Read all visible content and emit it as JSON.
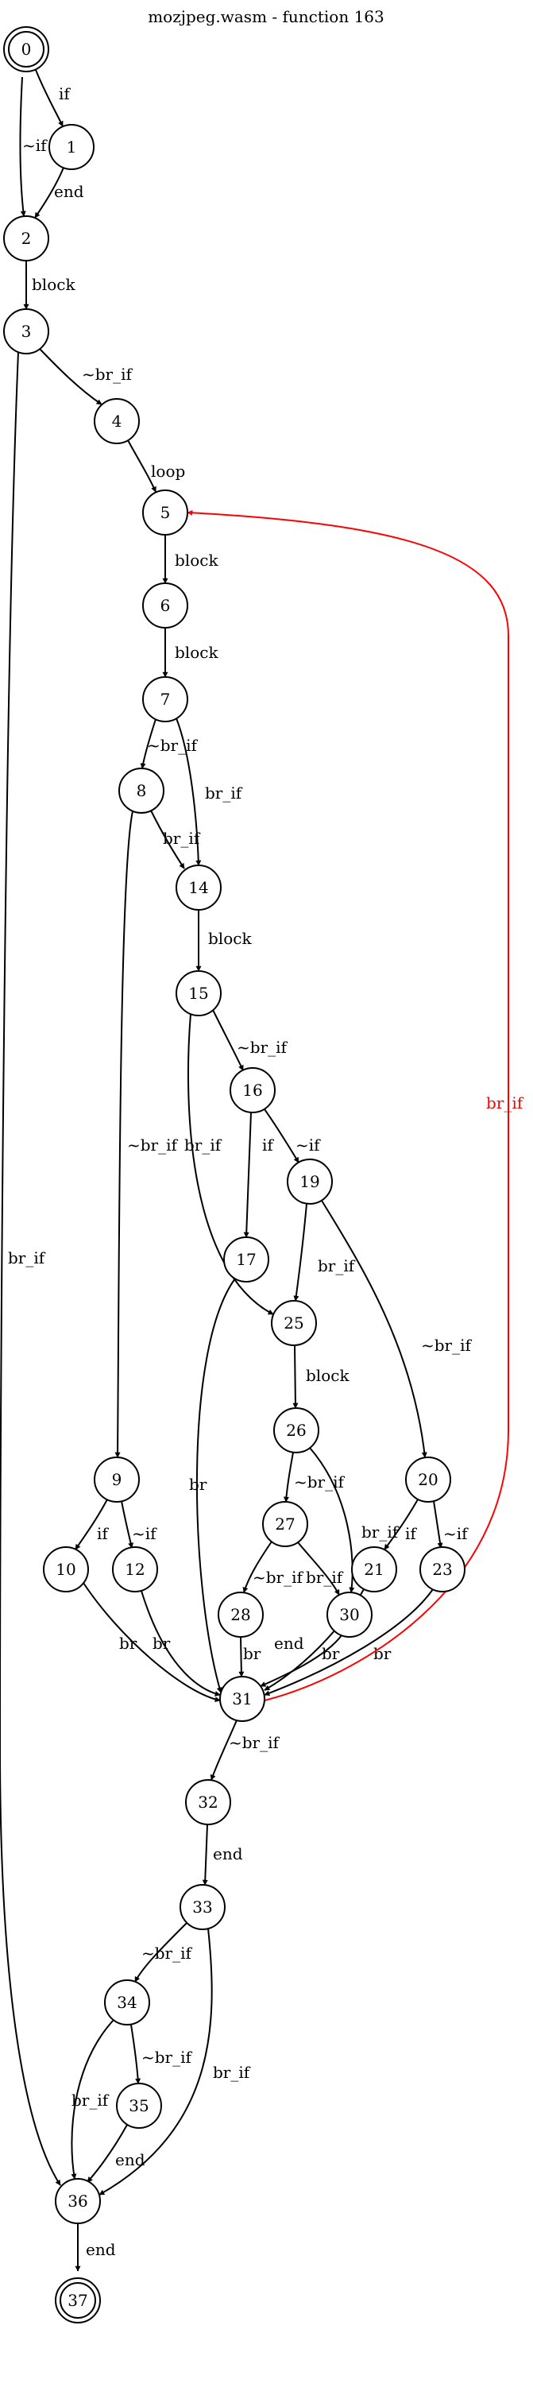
{
  "title": "mozjpeg.wasm - function 163",
  "colors": {
    "default": "#000000",
    "back_edge": "#ff0000"
  },
  "nodes": [
    {
      "id": "0",
      "label": "0",
      "shape": "doublecircle"
    },
    {
      "id": "1",
      "label": "1",
      "shape": "circle"
    },
    {
      "id": "2",
      "label": "2",
      "shape": "circle"
    },
    {
      "id": "3",
      "label": "3",
      "shape": "circle"
    },
    {
      "id": "4",
      "label": "4",
      "shape": "circle"
    },
    {
      "id": "5",
      "label": "5",
      "shape": "circle"
    },
    {
      "id": "6",
      "label": "6",
      "shape": "circle"
    },
    {
      "id": "7",
      "label": "7",
      "shape": "circle"
    },
    {
      "id": "8",
      "label": "8",
      "shape": "circle"
    },
    {
      "id": "9",
      "label": "9",
      "shape": "circle"
    },
    {
      "id": "10",
      "label": "10",
      "shape": "circle"
    },
    {
      "id": "12",
      "label": "12",
      "shape": "circle"
    },
    {
      "id": "14",
      "label": "14",
      "shape": "circle"
    },
    {
      "id": "15",
      "label": "15",
      "shape": "circle"
    },
    {
      "id": "16",
      "label": "16",
      "shape": "circle"
    },
    {
      "id": "17",
      "label": "17",
      "shape": "circle"
    },
    {
      "id": "19",
      "label": "19",
      "shape": "circle"
    },
    {
      "id": "20",
      "label": "20",
      "shape": "circle"
    },
    {
      "id": "21",
      "label": "21",
      "shape": "circle"
    },
    {
      "id": "23",
      "label": "23",
      "shape": "circle"
    },
    {
      "id": "25",
      "label": "25",
      "shape": "circle"
    },
    {
      "id": "26",
      "label": "26",
      "shape": "circle"
    },
    {
      "id": "27",
      "label": "27",
      "shape": "circle"
    },
    {
      "id": "28",
      "label": "28",
      "shape": "circle"
    },
    {
      "id": "30",
      "label": "30",
      "shape": "circle"
    },
    {
      "id": "31",
      "label": "31",
      "shape": "circle"
    },
    {
      "id": "32",
      "label": "32",
      "shape": "circle"
    },
    {
      "id": "33",
      "label": "33",
      "shape": "circle"
    },
    {
      "id": "34",
      "label": "34",
      "shape": "circle"
    },
    {
      "id": "35",
      "label": "35",
      "shape": "circle"
    },
    {
      "id": "36",
      "label": "36",
      "shape": "circle"
    },
    {
      "id": "37",
      "label": "37",
      "shape": "doublecircle"
    }
  ],
  "edges": [
    {
      "from": "0",
      "to": "1",
      "label": "if",
      "color": "#000000"
    },
    {
      "from": "0",
      "to": "2",
      "label": "~if",
      "color": "#000000"
    },
    {
      "from": "1",
      "to": "2",
      "label": "end",
      "color": "#000000"
    },
    {
      "from": "2",
      "to": "3",
      "label": "block",
      "color": "#000000"
    },
    {
      "from": "3",
      "to": "4",
      "label": "~br_if",
      "color": "#000000"
    },
    {
      "from": "3",
      "to": "36",
      "label": "br_if",
      "color": "#000000"
    },
    {
      "from": "4",
      "to": "5",
      "label": "loop",
      "color": "#000000"
    },
    {
      "from": "5",
      "to": "6",
      "label": "block",
      "color": "#000000"
    },
    {
      "from": "6",
      "to": "7",
      "label": "block",
      "color": "#000000"
    },
    {
      "from": "7",
      "to": "8",
      "label": "~br_if",
      "color": "#000000"
    },
    {
      "from": "7",
      "to": "14",
      "label": "br_if",
      "color": "#000000"
    },
    {
      "from": "8",
      "to": "14",
      "label": "br_if",
      "color": "#000000"
    },
    {
      "from": "8",
      "to": "9",
      "label": "~br_if",
      "color": "#000000"
    },
    {
      "from": "14",
      "to": "15",
      "label": "block",
      "color": "#000000"
    },
    {
      "from": "15",
      "to": "16",
      "label": "~br_if",
      "color": "#000000"
    },
    {
      "from": "15",
      "to": "25",
      "label": "br_if",
      "color": "#000000"
    },
    {
      "from": "16",
      "to": "17",
      "label": "if",
      "color": "#000000"
    },
    {
      "from": "16",
      "to": "19",
      "label": "~if",
      "color": "#000000"
    },
    {
      "from": "19",
      "to": "25",
      "label": "br_if",
      "color": "#000000"
    },
    {
      "from": "19",
      "to": "20",
      "label": "~br_if",
      "color": "#000000"
    },
    {
      "from": "17",
      "to": "31",
      "label": "br",
      "color": "#000000"
    },
    {
      "from": "25",
      "to": "26",
      "label": "block",
      "color": "#000000"
    },
    {
      "from": "26",
      "to": "27",
      "label": "~br_if",
      "color": "#000000"
    },
    {
      "from": "26",
      "to": "30",
      "label": "br_if",
      "color": "#000000"
    },
    {
      "from": "27",
      "to": "28",
      "label": "~br_if",
      "color": "#000000"
    },
    {
      "from": "27",
      "to": "30",
      "label": "br_if",
      "color": "#000000"
    },
    {
      "from": "9",
      "to": "10",
      "label": "if",
      "color": "#000000"
    },
    {
      "from": "9",
      "to": "12",
      "label": "~if",
      "color": "#000000"
    },
    {
      "from": "20",
      "to": "21",
      "label": "if",
      "color": "#000000"
    },
    {
      "from": "20",
      "to": "23",
      "label": "~if",
      "color": "#000000"
    },
    {
      "from": "10",
      "to": "31",
      "label": "br",
      "color": "#000000"
    },
    {
      "from": "12",
      "to": "31",
      "label": "br",
      "color": "#000000"
    },
    {
      "from": "28",
      "to": "31",
      "label": "br",
      "color": "#000000"
    },
    {
      "from": "30",
      "to": "31",
      "label": "end",
      "color": "#000000"
    },
    {
      "from": "21",
      "to": "31",
      "label": "br",
      "color": "#000000"
    },
    {
      "from": "23",
      "to": "31",
      "label": "br",
      "color": "#000000"
    },
    {
      "from": "31",
      "to": "5",
      "label": "br_if",
      "color": "#ff0000"
    },
    {
      "from": "31",
      "to": "32",
      "label": "~br_if",
      "color": "#000000"
    },
    {
      "from": "32",
      "to": "33",
      "label": "end",
      "color": "#000000"
    },
    {
      "from": "33",
      "to": "34",
      "label": "~br_if",
      "color": "#000000"
    },
    {
      "from": "33",
      "to": "36",
      "label": "br_if",
      "color": "#000000"
    },
    {
      "from": "34",
      "to": "36",
      "label": "br_if",
      "color": "#000000"
    },
    {
      "from": "34",
      "to": "35",
      "label": "~br_if",
      "color": "#000000"
    },
    {
      "from": "35",
      "to": "36",
      "label": "end",
      "color": "#000000"
    },
    {
      "from": "36",
      "to": "37",
      "label": "end",
      "color": "#000000"
    }
  ]
}
